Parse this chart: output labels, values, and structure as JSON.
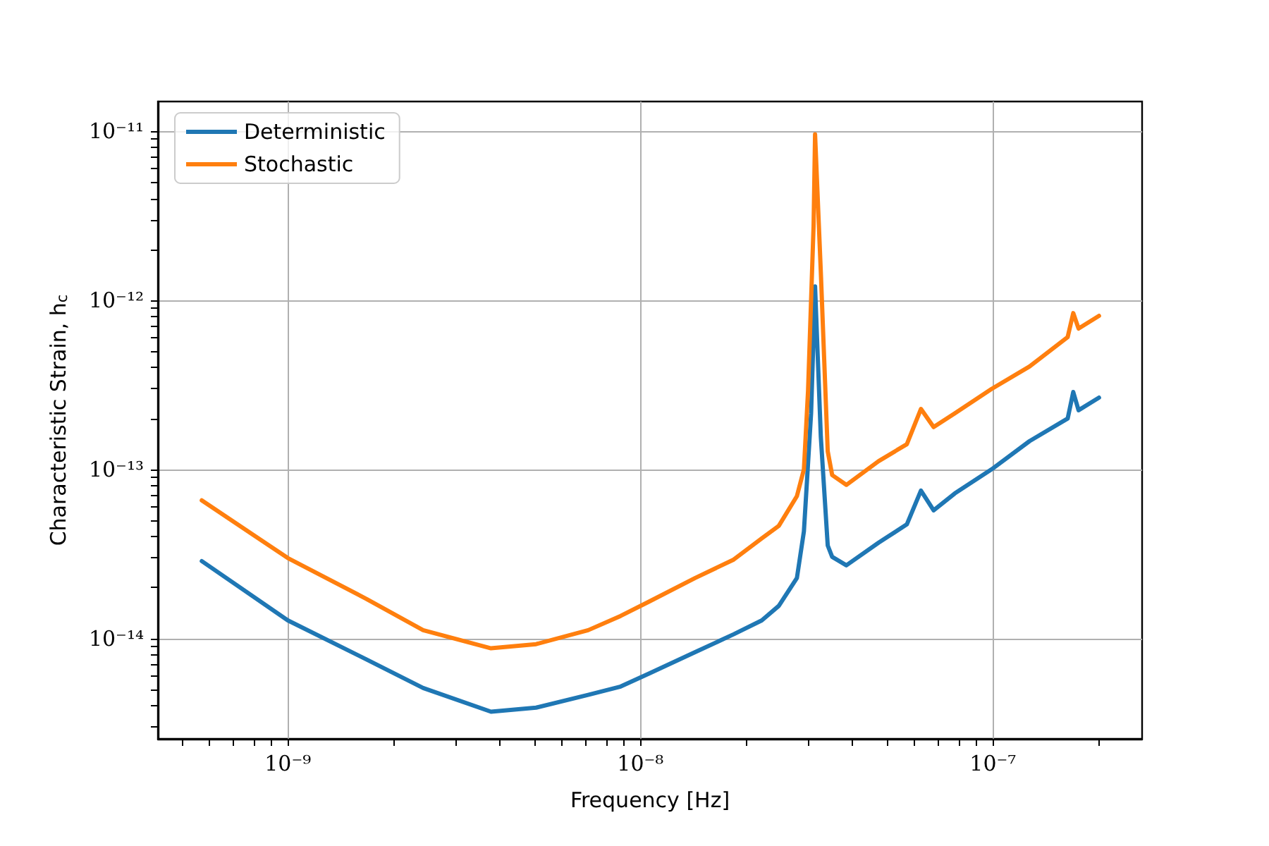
{
  "chart_data": {
    "type": "line",
    "xlabel": "Frequency [Hz]",
    "ylabel": "Characteristic Strain, h$_{c}$",
    "log": "xy",
    "grid": true,
    "legend": "top left",
    "marker": "none",
    "line_style": "solid",
    "xlim": [
      4.28e-10,
      2.65e-07
    ],
    "ylim": [
      2.55e-15,
      1.5e-11
    ],
    "xticks": [
      {
        "value": 5e-10,
        "label": null
      },
      {
        "value": 6e-10,
        "label": null
      },
      {
        "value": 7e-10,
        "label": null
      },
      {
        "value": 8e-10,
        "label": null
      },
      {
        "value": 9e-10,
        "label": null
      },
      {
        "value": 1e-09,
        "label": "10⁻⁹"
      },
      {
        "value": 2e-09,
        "label": null
      },
      {
        "value": 3e-09,
        "label": null
      },
      {
        "value": 4e-09,
        "label": null
      },
      {
        "value": 5e-09,
        "label": null
      },
      {
        "value": 6e-09,
        "label": null
      },
      {
        "value": 7e-09,
        "label": null
      },
      {
        "value": 8e-09,
        "label": null
      },
      {
        "value": 9e-09,
        "label": null
      },
      {
        "value": 1e-08,
        "label": "10⁻⁸"
      },
      {
        "value": 2e-08,
        "label": null
      },
      {
        "value": 3e-08,
        "label": null
      },
      {
        "value": 4e-08,
        "label": null
      },
      {
        "value": 5e-08,
        "label": null
      },
      {
        "value": 6e-08,
        "label": null
      },
      {
        "value": 7e-08,
        "label": null
      },
      {
        "value": 8e-08,
        "label": null
      },
      {
        "value": 9e-08,
        "label": null
      },
      {
        "value": 1e-07,
        "label": "10⁻⁷"
      },
      {
        "value": 2e-07,
        "label": null
      }
    ],
    "yticks": [
      {
        "value": 3e-15,
        "label": null
      },
      {
        "value": 4e-15,
        "label": null
      },
      {
        "value": 5e-15,
        "label": null
      },
      {
        "value": 6e-15,
        "label": null
      },
      {
        "value": 7e-15,
        "label": null
      },
      {
        "value": 8e-15,
        "label": null
      },
      {
        "value": 9e-15,
        "label": null
      },
      {
        "value": 1e-14,
        "label": "10⁻¹⁴"
      },
      {
        "value": 2e-14,
        "label": null
      },
      {
        "value": 3e-14,
        "label": null
      },
      {
        "value": 4e-14,
        "label": null
      },
      {
        "value": 5e-14,
        "label": null
      },
      {
        "value": 6e-14,
        "label": null
      },
      {
        "value": 7e-14,
        "label": null
      },
      {
        "value": 8e-14,
        "label": null
      },
      {
        "value": 9e-14,
        "label": null
      },
      {
        "value": 1e-13,
        "label": "10⁻¹³"
      },
      {
        "value": 2e-13,
        "label": null
      },
      {
        "value": 3e-13,
        "label": null
      },
      {
        "value": 4e-13,
        "label": null
      },
      {
        "value": 5e-13,
        "label": null
      },
      {
        "value": 6e-13,
        "label": null
      },
      {
        "value": 7e-13,
        "label": null
      },
      {
        "value": 8e-13,
        "label": null
      },
      {
        "value": 9e-13,
        "label": null
      },
      {
        "value": 1e-12,
        "label": "10⁻¹²"
      },
      {
        "value": 2e-12,
        "label": null
      },
      {
        "value": 3e-12,
        "label": null
      },
      {
        "value": 4e-12,
        "label": null
      },
      {
        "value": 5e-12,
        "label": null
      },
      {
        "value": 6e-12,
        "label": null
      },
      {
        "value": 7e-12,
        "label": null
      },
      {
        "value": 8e-12,
        "label": null
      },
      {
        "value": 9e-12,
        "label": null
      },
      {
        "value": 1e-11,
        "label": "10⁻¹¹"
      }
    ],
    "series": [
      {
        "name": "Deterministic",
        "color": "#1f77b4",
        "x": [
          5.7e-10,
          1e-09,
          1.675e-09,
          2.42e-09,
          3.77e-09,
          5.06e-09,
          7.11e-09,
          8.79e-09,
          1.057e-08,
          1.43e-08,
          1.84e-08,
          2.21e-08,
          2.47e-08,
          2.78e-08,
          2.91e-08,
          3.05e-08,
          3.13e-08,
          3.25e-08,
          3.4e-08,
          3.5e-08,
          3.84e-08,
          4.74e-08,
          5.7e-08,
          6.25e-08,
          6.79e-08,
          7.8e-08,
          9.91e-08,
          1.27e-07,
          1.63e-07,
          1.69e-07,
          1.75e-07,
          2e-07
        ],
        "values": [
          2.87e-14,
          1.28e-14,
          7.5e-15,
          5.1e-15,
          3.69e-15,
          3.9e-15,
          4.64e-15,
          5.2e-15,
          6.2e-15,
          8.3e-15,
          1.06e-14,
          1.28e-14,
          1.56e-14,
          2.28e-14,
          4.3e-14,
          2.15e-13,
          1.21e-12,
          1.56e-13,
          3.55e-14,
          3.04e-14,
          2.71e-14,
          3.69e-14,
          4.73e-14,
          7.5e-14,
          5.73e-14,
          7.22e-14,
          1e-13,
          1.47e-13,
          2e-13,
          2.87e-13,
          2.24e-13,
          2.66e-13
        ]
      },
      {
        "name": "Stochastic",
        "color": "#ff7f0e",
        "x": [
          5.7e-10,
          1e-09,
          1.675e-09,
          2.42e-09,
          3.77e-09,
          5.06e-09,
          7.11e-09,
          8.79e-09,
          1.057e-08,
          1.43e-08,
          1.84e-08,
          2.21e-08,
          2.47e-08,
          2.78e-08,
          2.91e-08,
          2.99e-08,
          3.1e-08,
          3.13e-08,
          3.25e-08,
          3.4e-08,
          3.5e-08,
          3.84e-08,
          4.74e-08,
          5.7e-08,
          6.25e-08,
          6.79e-08,
          7.8e-08,
          9.91e-08,
          1.27e-07,
          1.63e-07,
          1.69e-07,
          1.75e-07,
          2e-07
        ],
        "values": [
          6.56e-14,
          2.99e-14,
          1.71e-14,
          1.12e-14,
          8.75e-15,
          9.26e-15,
          1.12e-14,
          1.36e-14,
          1.65e-14,
          2.28e-14,
          2.93e-14,
          3.91e-14,
          4.64e-14,
          6.95e-14,
          1e-13,
          2.93e-13,
          2.77e-12,
          9.6e-12,
          1.47e-12,
          1.28e-13,
          9.26e-14,
          8.1e-14,
          1.12e-13,
          1.41e-13,
          2.28e-13,
          1.78e-13,
          2.15e-13,
          2.99e-13,
          4.06e-13,
          6.07e-13,
          8.41e-13,
          6.81e-13,
          8.1e-13
        ]
      }
    ]
  }
}
